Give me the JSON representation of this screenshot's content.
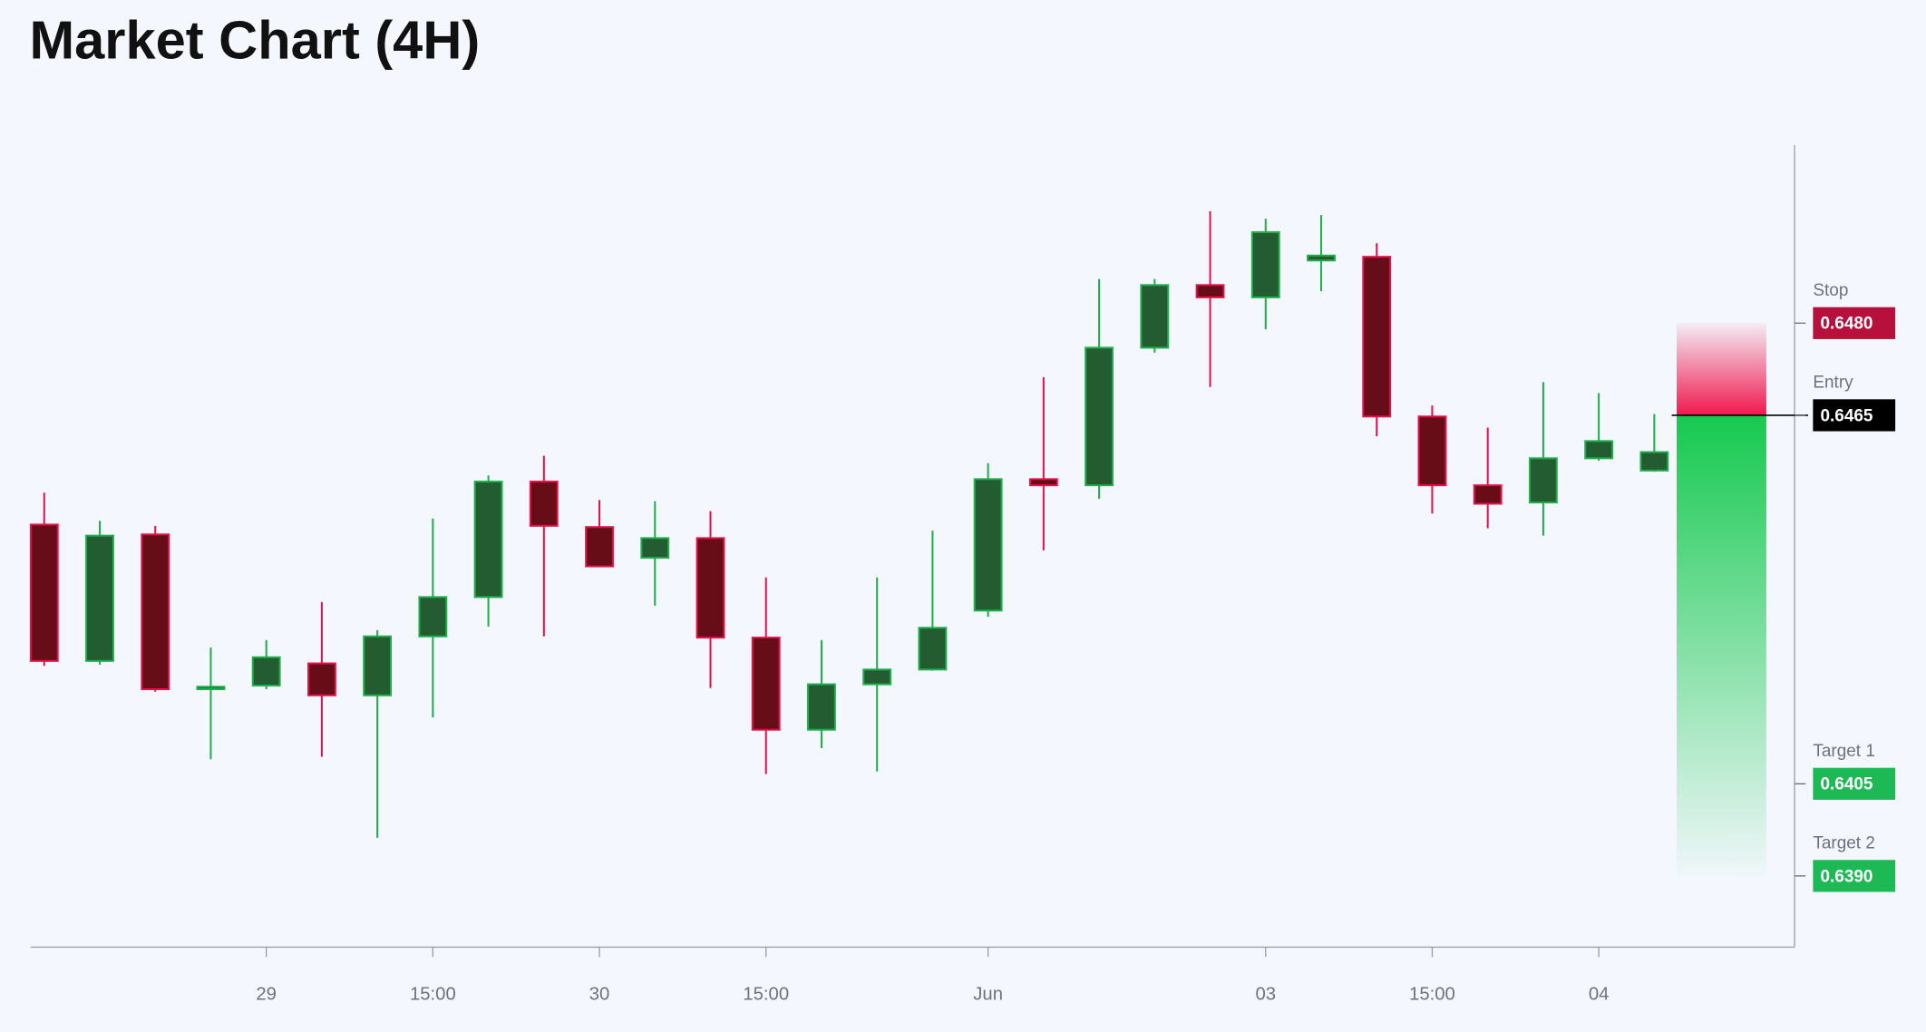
{
  "chart_data": {
    "type": "candlestick",
    "title": "Market Chart (4H)",
    "categories": [
      null,
      null,
      null,
      null,
      "29",
      null,
      null,
      "15:00",
      null,
      null,
      "30",
      null,
      null,
      "15:00",
      null,
      null,
      null,
      "Jun",
      null,
      null,
      null,
      null,
      "03",
      null,
      null,
      "15:00",
      null,
      null,
      "04",
      null
    ],
    "open": [
      0.64472,
      0.6425,
      0.64456,
      0.64204,
      0.6421,
      0.64246,
      0.64194,
      0.6429,
      0.64354,
      0.64542,
      0.64468,
      0.64418,
      0.6445,
      0.64288,
      0.64138,
      0.64212,
      0.64236,
      0.64332,
      0.64546,
      0.64536,
      0.6476,
      0.64862,
      0.64842,
      0.64902,
      0.64908,
      0.64648,
      0.64536,
      0.64508,
      0.6458,
      0.6456
    ],
    "high": [
      0.64524,
      0.64478,
      0.6447,
      0.64272,
      0.64284,
      0.64346,
      0.643,
      0.64482,
      0.64552,
      0.64584,
      0.64512,
      0.6451,
      0.64494,
      0.64386,
      0.64284,
      0.64386,
      0.64462,
      0.64572,
      0.64712,
      0.64872,
      0.64872,
      0.64982,
      0.6497,
      0.64976,
      0.6493,
      0.64666,
      0.6463,
      0.64704,
      0.64686,
      0.64652
    ],
    "low": [
      0.64242,
      0.64244,
      0.642,
      0.6409,
      0.64204,
      0.64094,
      0.63962,
      0.64158,
      0.64306,
      0.6429,
      0.64404,
      0.6434,
      0.64206,
      0.64066,
      0.64108,
      0.6407,
      0.64234,
      0.64322,
      0.6443,
      0.64514,
      0.64752,
      0.64696,
      0.6479,
      0.64852,
      0.64616,
      0.6449,
      0.64466,
      0.64454,
      0.64576,
      0.64558
    ],
    "close": [
      0.6425,
      0.64454,
      0.64204,
      0.64208,
      0.64256,
      0.64194,
      0.6429,
      0.64354,
      0.64542,
      0.6447,
      0.64404,
      0.6445,
      0.64288,
      0.64138,
      0.64212,
      0.64236,
      0.64304,
      0.64546,
      0.64536,
      0.6476,
      0.64862,
      0.64842,
      0.64948,
      0.6491,
      0.64648,
      0.64536,
      0.64506,
      0.6458,
      0.64608,
      0.6459
    ],
    "up_color": "#235c30",
    "up_border": "#1fae4b",
    "down_color": "#660d17",
    "down_border": "#e3134a",
    "ylim": [
      0.63784,
      0.6509
    ],
    "levels": [
      {
        "name": "Stop",
        "value": 0.648,
        "label": "0.6480",
        "color": "#b8103c"
      },
      {
        "name": "Entry",
        "value": 0.6465,
        "label": "0.6465",
        "color": "#000000"
      },
      {
        "name": "Target 1",
        "value": 0.6405,
        "label": "0.6405",
        "color": "#1db954"
      },
      {
        "name": "Target 2",
        "value": 0.639,
        "label": "0.6390",
        "color": "#1db954"
      }
    ]
  }
}
